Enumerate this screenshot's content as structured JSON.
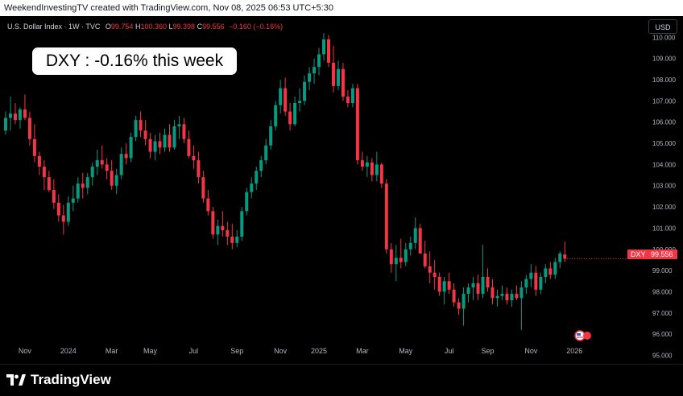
{
  "header": {
    "credit": "WeekendInvestingTV created with TradingView.com, Nov 08, 2025 06:53 UTC+5:30"
  },
  "legend": {
    "symbol": "U.S. Dollar Index · 1W · TVC",
    "o_label": "O",
    "o_value": "99.754",
    "h_label": "H",
    "h_value": "100.360",
    "l_label": "L",
    "l_value": "99.398",
    "c_label": "C",
    "c_value": "99.556",
    "change": "−0.160 (−0.16%)"
  },
  "currency_button": "USD",
  "callout": "DXY : -0.16% this week",
  "price_tag": {
    "symbol": "DXY",
    "value": "99.556",
    "color": "#f23645"
  },
  "brand": {
    "name": "TradingView",
    "icon": "tradingview-logo-icon"
  },
  "colors": {
    "up": "#089981",
    "down": "#f23645",
    "background": "#000000",
    "text": "#b2b5be"
  },
  "chart_data": {
    "type": "candlestick",
    "ylim": [
      94.6,
      111.0
    ],
    "y_ticks": [
      95,
      96,
      97,
      98,
      99,
      100,
      101,
      102,
      103,
      104,
      105,
      106,
      107,
      108,
      109,
      110
    ],
    "y_tick_labels": [
      "95.000",
      "96.000",
      "97.000",
      "98.000",
      "99.000",
      "100.000",
      "101.000",
      "102.000",
      "103.000",
      "104.000",
      "105.000",
      "106.000",
      "107.000",
      "108.000",
      "109.000",
      "110.000"
    ],
    "x_ticks": [
      {
        "label": "Nov",
        "week": 4
      },
      {
        "label": "2024",
        "week": 13
      },
      {
        "label": "Mar",
        "week": 22
      },
      {
        "label": "May",
        "week": 30
      },
      {
        "label": "Jul",
        "week": 39
      },
      {
        "label": "Sep",
        "week": 48
      },
      {
        "label": "Nov",
        "week": 57
      },
      {
        "label": "2025",
        "week": 65
      },
      {
        "label": "Mar",
        "week": 74
      },
      {
        "label": "May",
        "week": 83
      },
      {
        "label": "Jul",
        "week": 92
      },
      {
        "label": "Sep",
        "week": 100
      },
      {
        "label": "Nov",
        "week": 109
      },
      {
        "label": "2026",
        "week": 118
      }
    ],
    "last_close": 99.556,
    "candles": [
      [
        105.6,
        106.5,
        105.4,
        106.2
      ],
      [
        106.2,
        107.2,
        105.6,
        106.4
      ],
      [
        106.4,
        106.9,
        105.9,
        106.1
      ],
      [
        106.1,
        106.7,
        105.7,
        106.6
      ],
      [
        106.6,
        107.3,
        106.1,
        106.2
      ],
      [
        106.2,
        106.5,
        104.9,
        105.2
      ],
      [
        105.2,
        105.9,
        104.1,
        104.4
      ],
      [
        104.4,
        104.6,
        103.5,
        103.9
      ],
      [
        103.9,
        104.2,
        102.8,
        103.4
      ],
      [
        103.4,
        103.7,
        102.7,
        102.8
      ],
      [
        102.8,
        103.3,
        101.9,
        102.2
      ],
      [
        102.2,
        102.6,
        101.3,
        101.6
      ],
      [
        101.6,
        102.1,
        100.7,
        101.3
      ],
      [
        101.3,
        102.5,
        101.1,
        102.2
      ],
      [
        102.2,
        103.0,
        101.8,
        102.4
      ],
      [
        102.4,
        103.4,
        102.2,
        103.1
      ],
      [
        103.1,
        103.6,
        102.4,
        102.9
      ],
      [
        102.9,
        103.6,
        102.6,
        103.4
      ],
      [
        103.4,
        104.1,
        103.0,
        103.9
      ],
      [
        103.9,
        104.7,
        103.5,
        104.2
      ],
      [
        104.2,
        104.9,
        103.8,
        104.0
      ],
      [
        104.0,
        104.3,
        103.3,
        103.7
      ],
      [
        103.7,
        104.2,
        102.8,
        103.0
      ],
      [
        103.0,
        103.8,
        102.6,
        103.5
      ],
      [
        103.5,
        104.8,
        103.3,
        104.5
      ],
      [
        104.5,
        105.0,
        104.0,
        104.3
      ],
      [
        104.3,
        105.5,
        104.1,
        105.3
      ],
      [
        105.3,
        106.3,
        105.1,
        106.1
      ],
      [
        106.1,
        106.5,
        105.3,
        105.6
      ],
      [
        105.6,
        106.1,
        104.9,
        105.2
      ],
      [
        105.2,
        105.5,
        104.3,
        104.6
      ],
      [
        104.6,
        105.4,
        104.2,
        105.1
      ],
      [
        105.1,
        105.5,
        104.5,
        104.8
      ],
      [
        104.8,
        105.7,
        104.6,
        105.4
      ],
      [
        105.4,
        105.9,
        104.6,
        104.8
      ],
      [
        104.8,
        106.1,
        104.7,
        105.8
      ],
      [
        105.8,
        106.3,
        105.2,
        105.9
      ],
      [
        105.9,
        106.2,
        105.0,
        105.2
      ],
      [
        105.2,
        105.6,
        104.3,
        104.4
      ],
      [
        104.4,
        104.9,
        103.8,
        104.2
      ],
      [
        104.2,
        104.6,
        103.1,
        103.4
      ],
      [
        103.4,
        103.7,
        102.2,
        102.4
      ],
      [
        102.4,
        102.8,
        101.6,
        101.8
      ],
      [
        101.8,
        102.0,
        100.5,
        100.7
      ],
      [
        100.7,
        101.4,
        100.2,
        101.1
      ],
      [
        101.1,
        101.8,
        100.6,
        100.9
      ],
      [
        100.9,
        101.3,
        100.2,
        100.6
      ],
      [
        100.6,
        101.2,
        100.0,
        100.3
      ],
      [
        100.3,
        100.9,
        100.1,
        100.6
      ],
      [
        100.6,
        102.0,
        100.4,
        101.8
      ],
      [
        101.8,
        102.9,
        101.6,
        102.7
      ],
      [
        102.7,
        103.4,
        102.4,
        103.1
      ],
      [
        103.1,
        103.9,
        102.8,
        103.7
      ],
      [
        103.7,
        104.4,
        103.4,
        104.2
      ],
      [
        104.2,
        105.2,
        104.0,
        104.9
      ],
      [
        104.9,
        106.1,
        104.7,
        105.8
      ],
      [
        105.8,
        107.0,
        105.6,
        106.8
      ],
      [
        106.8,
        108.0,
        106.4,
        107.6
      ],
      [
        107.6,
        108.1,
        106.3,
        106.5
      ],
      [
        106.5,
        106.9,
        105.6,
        105.9
      ],
      [
        105.9,
        107.2,
        105.8,
        106.9
      ],
      [
        106.9,
        107.6,
        106.5,
        107.0
      ],
      [
        107.0,
        108.2,
        106.8,
        107.9
      ],
      [
        107.9,
        108.6,
        107.5,
        108.3
      ],
      [
        108.3,
        109.0,
        107.8,
        108.6
      ],
      [
        108.6,
        109.5,
        108.2,
        109.2
      ],
      [
        109.2,
        110.2,
        108.9,
        109.9
      ],
      [
        109.9,
        110.1,
        108.6,
        108.8
      ],
      [
        108.8,
        109.6,
        107.4,
        107.7
      ],
      [
        107.7,
        108.9,
        107.5,
        108.5
      ],
      [
        108.5,
        108.8,
        107.0,
        107.2
      ],
      [
        107.2,
        107.5,
        106.7,
        106.9
      ],
      [
        106.9,
        107.8,
        106.7,
        107.6
      ],
      [
        107.6,
        107.8,
        104.0,
        104.2
      ],
      [
        104.2,
        104.6,
        103.7,
        103.9
      ],
      [
        103.9,
        104.4,
        103.4,
        104.1
      ],
      [
        104.1,
        104.3,
        103.2,
        103.5
      ],
      [
        103.5,
        104.6,
        103.2,
        104.0
      ],
      [
        104.0,
        104.1,
        102.9,
        103.1
      ],
      [
        103.1,
        103.3,
        99.8,
        100.0
      ],
      [
        100.0,
        100.3,
        98.9,
        99.3
      ],
      [
        99.3,
        100.2,
        98.5,
        99.6
      ],
      [
        99.6,
        100.5,
        99.1,
        99.4
      ],
      [
        99.4,
        100.3,
        99.2,
        100.0
      ],
      [
        100.0,
        100.6,
        99.7,
        100.3
      ],
      [
        100.3,
        101.5,
        100.0,
        101.0
      ],
      [
        101.0,
        101.2,
        99.8,
        99.8
      ],
      [
        99.8,
        100.4,
        99.1,
        99.2
      ],
      [
        99.2,
        99.9,
        98.4,
        98.9
      ],
      [
        98.9,
        99.5,
        98.1,
        98.7
      ],
      [
        98.7,
        98.9,
        97.8,
        98.0
      ],
      [
        98.0,
        98.7,
        97.4,
        98.5
      ],
      [
        98.5,
        98.9,
        97.9,
        98.1
      ],
      [
        98.1,
        98.4,
        97.3,
        97.5
      ],
      [
        97.5,
        97.7,
        96.9,
        97.2
      ],
      [
        97.2,
        98.2,
        96.4,
        97.9
      ],
      [
        97.9,
        98.4,
        97.5,
        98.2
      ],
      [
        98.2,
        98.7,
        97.6,
        98.4
      ],
      [
        98.4,
        98.8,
        97.6,
        97.9
      ],
      [
        97.9,
        100.2,
        97.7,
        98.7
      ],
      [
        98.7,
        99.1,
        98.0,
        98.2
      ],
      [
        98.2,
        98.6,
        97.4,
        97.7
      ],
      [
        97.7,
        98.1,
        97.3,
        97.8
      ],
      [
        97.8,
        98.3,
        97.6,
        97.9
      ],
      [
        97.9,
        98.2,
        97.4,
        97.6
      ],
      [
        97.6,
        98.1,
        97.3,
        97.9
      ],
      [
        97.9,
        98.3,
        97.6,
        97.7
      ],
      [
        97.7,
        98.5,
        96.2,
        98.2
      ],
      [
        98.2,
        98.8,
        97.9,
        98.6
      ],
      [
        98.6,
        99.3,
        98.2,
        98.9
      ],
      [
        98.9,
        99.2,
        97.8,
        98.1
      ],
      [
        98.1,
        98.9,
        97.9,
        98.7
      ],
      [
        98.7,
        99.3,
        98.4,
        99.1
      ],
      [
        99.1,
        99.4,
        98.6,
        98.8
      ],
      [
        98.8,
        99.6,
        98.6,
        99.4
      ],
      [
        99.4,
        99.9,
        99.1,
        99.8
      ],
      [
        99.754,
        100.36,
        99.398,
        99.556
      ]
    ]
  }
}
